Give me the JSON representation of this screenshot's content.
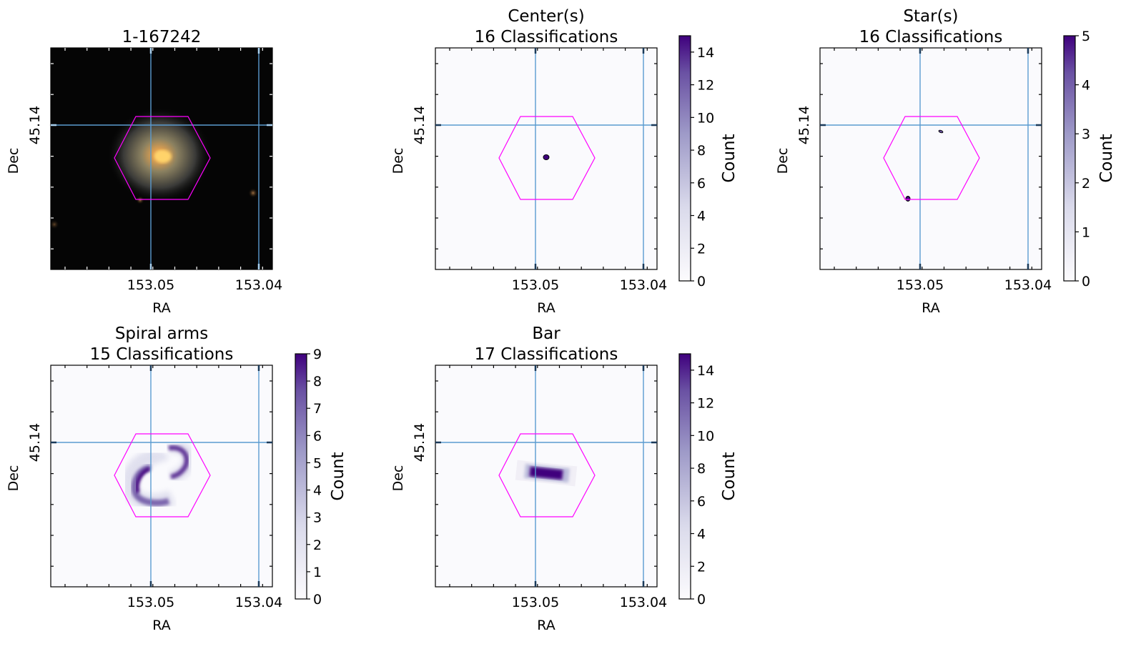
{
  "colors": {
    "hexagon": "#ff00ff",
    "crosshair": "#1f77b4",
    "cmap_low": "#fcfbfd",
    "cmap_high": "#3f007d",
    "background": "#fafafd"
  },
  "chart_data": [
    {
      "type": "image",
      "title": "1-167242",
      "xlabel": "RA",
      "ylabel": "Dec",
      "xticks": [
        "153.05",
        "153.04"
      ],
      "yticks": [
        "45.14"
      ]
    },
    {
      "type": "heatmap",
      "title": "Center(s)\n16 Classifications",
      "title_lines": [
        "Center(s)",
        "16 Classifications"
      ],
      "xlabel": "RA",
      "ylabel": "Dec",
      "xticks": [
        "153.05",
        "153.04"
      ],
      "yticks": [
        "45.14"
      ],
      "colorbar": {
        "label": "Count",
        "range": [
          0,
          15
        ],
        "ticks": [
          "0",
          "2",
          "4",
          "6",
          "8",
          "10",
          "12",
          "14"
        ]
      },
      "marks": "center"
    },
    {
      "type": "heatmap",
      "title": "Star(s)\n16 Classifications",
      "title_lines": [
        "Star(s)",
        "16 Classifications"
      ],
      "xlabel": "RA",
      "ylabel": "Dec",
      "xticks": [
        "153.05",
        "153.04"
      ],
      "yticks": [
        "45.14"
      ],
      "colorbar": {
        "label": "Count",
        "range": [
          0,
          5
        ],
        "ticks": [
          "0",
          "1",
          "2",
          "3",
          "4",
          "5"
        ]
      },
      "marks": "stars"
    },
    {
      "type": "heatmap",
      "title": "Spiral arms\n15 Classifications",
      "title_lines": [
        "Spiral arms",
        "15 Classifications"
      ],
      "xlabel": "RA",
      "ylabel": "Dec",
      "xticks": [
        "153.05",
        "153.04"
      ],
      "yticks": [
        "45.14"
      ],
      "colorbar": {
        "label": "Count",
        "range": [
          0,
          9
        ],
        "ticks": [
          "0",
          "1",
          "2",
          "3",
          "4",
          "5",
          "6",
          "7",
          "8",
          "9"
        ]
      },
      "marks": "spiral"
    },
    {
      "type": "heatmap",
      "title": "Bar\n17 Classifications",
      "title_lines": [
        "Bar",
        "17 Classifications"
      ],
      "xlabel": "RA",
      "ylabel": "Dec",
      "xticks": [
        "153.05",
        "153.04"
      ],
      "yticks": [
        "45.14"
      ],
      "colorbar": {
        "label": "Count",
        "range": [
          0,
          15
        ],
        "ticks": [
          "0",
          "2",
          "4",
          "6",
          "8",
          "10",
          "12",
          "14"
        ]
      },
      "marks": "bar"
    }
  ]
}
